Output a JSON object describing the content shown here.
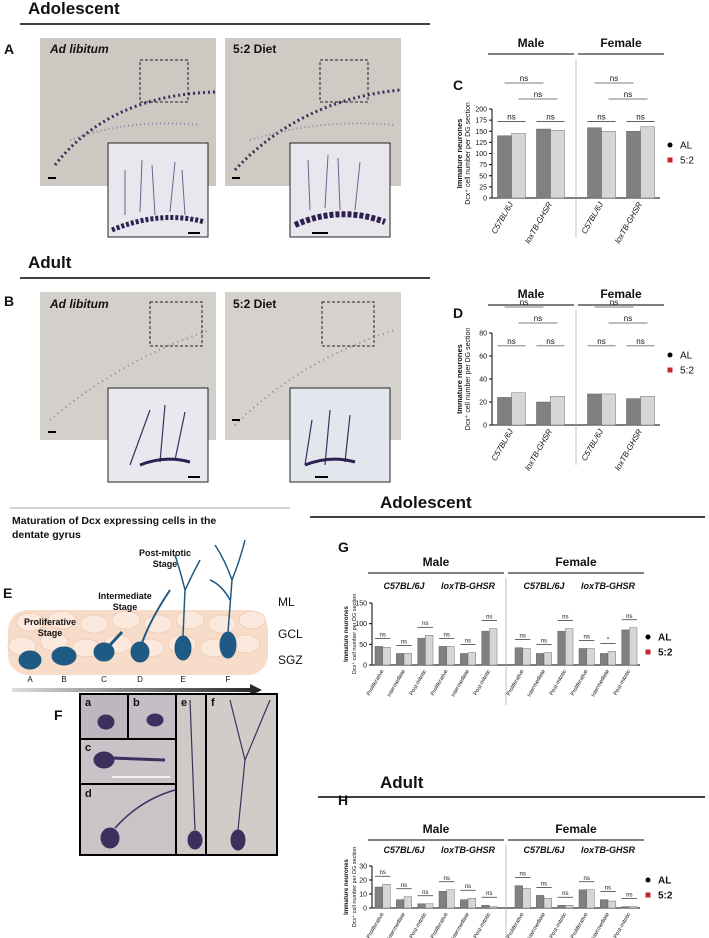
{
  "figure": {
    "heading_top": "Adolescent",
    "heading_adult": "Adult",
    "A": {
      "letter": "A",
      "left": "Ad libitum",
      "right": "5:2 Diet"
    },
    "B": {
      "letter": "B",
      "left": "Ad libitum",
      "right": "5:2 Diet"
    },
    "E": {
      "letter": "E",
      "title": [
        "Maturation of Dcx expressing cells in the",
        "dentate gyrus"
      ],
      "stages": [
        [
          "Post-mitotic",
          "Stage"
        ],
        [
          "Intermediate",
          "Stage"
        ],
        [
          "Proliferative",
          "Stage"
        ]
      ],
      "layers": [
        "ML",
        "GCL",
        "SGZ"
      ],
      "cells": [
        "A",
        "B",
        "C",
        "D",
        "E",
        "F"
      ]
    },
    "F": {
      "letter": "F",
      "cells": [
        "a",
        "b",
        "c",
        "d",
        "e",
        "f"
      ]
    }
  },
  "chart_data": [
    {
      "type": "bar",
      "letter": "C",
      "groups": [
        "Male",
        "Female"
      ],
      "categories": [
        "C57BL/6J",
        "loxTB-GHSR",
        "C57BL/6J",
        "loxTB-GHSR"
      ],
      "series": [
        {
          "name": "AL",
          "color": "#808080",
          "marker_color": "#000000",
          "values": [
            140,
            155,
            158,
            150
          ]
        },
        {
          "name": "5:2",
          "color": "#d6d6d6",
          "marker_color": "#c0282d",
          "values": [
            145,
            152,
            150,
            160
          ]
        }
      ],
      "ylabel": [
        "Immature neurones",
        "Dcx⁺ cell number per DG section"
      ],
      "ylim": [
        0,
        200
      ],
      "yticks": [
        0,
        25,
        50,
        75,
        100,
        125,
        150,
        175,
        200
      ],
      "annotations": [
        "ns",
        "ns",
        "ns",
        "ns",
        "ns",
        "ns",
        "ns",
        "ns"
      ]
    },
    {
      "type": "bar",
      "letter": "D",
      "groups": [
        "Male",
        "Female"
      ],
      "categories": [
        "C57BL/6J",
        "loxTB-GHSR",
        "C57BL/6J",
        "loxTB-GHSR"
      ],
      "series": [
        {
          "name": "AL",
          "color": "#808080",
          "marker_color": "#000000",
          "values": [
            24,
            20,
            27,
            23
          ]
        },
        {
          "name": "5:2",
          "color": "#d6d6d6",
          "marker_color": "#c0282d",
          "values": [
            28,
            25,
            27,
            25
          ]
        }
      ],
      "ylabel": [
        "Immature neurones",
        "Dcx⁺ cell number per DG section"
      ],
      "ylim": [
        0,
        80
      ],
      "yticks": [
        0,
        20,
        40,
        60,
        80
      ],
      "annotations": [
        "ns",
        "ns",
        "ns",
        "ns",
        "ns",
        "ns",
        "ns",
        "ns"
      ]
    },
    {
      "type": "bar",
      "letter": "G",
      "heading": "Adolescent",
      "groups": [
        "Male",
        "Female"
      ],
      "subgroups": [
        "C57BL/6J",
        "loxTB-GHSR",
        "C57BL/6J",
        "loxTB-GHSR"
      ],
      "categories": [
        "Proliferative",
        "Intermediate",
        "Post-mitotic",
        "Proliferative",
        "Intermediate",
        "Post-mitotic",
        "Proliferative",
        "Intermediate",
        "Post-mitotic",
        "Proliferative",
        "Intermediate",
        "Post-mitotic"
      ],
      "series": [
        {
          "name": "AL",
          "color": "#808080",
          "marker_color": "#000000",
          "values": [
            45,
            28,
            65,
            45,
            28,
            82,
            42,
            28,
            82,
            40,
            28,
            85
          ]
        },
        {
          "name": "5:2",
          "color": "#d6d6d6",
          "marker_color": "#c0282d",
          "values": [
            43,
            28,
            72,
            45,
            30,
            88,
            40,
            30,
            88,
            40,
            33,
            90
          ]
        }
      ],
      "ylabel": [
        "Immature neurones",
        "Dcx⁺ cell number per DG section"
      ],
      "ylim": [
        0,
        150
      ],
      "yticks": [
        0,
        50,
        100,
        150
      ],
      "annotations": [
        "ns",
        "ns",
        "ns",
        "ns",
        "ns",
        "ns",
        "ns",
        "ns",
        "ns",
        "ns",
        "*",
        "ns"
      ]
    },
    {
      "type": "bar",
      "letter": "H",
      "heading": "Adult",
      "groups": [
        "Male",
        "Female"
      ],
      "subgroups": [
        "C57BL/6J",
        "loxTB-GHSR",
        "C57BL/6J",
        "loxTB-GHSR"
      ],
      "categories": [
        "Proliferative",
        "Intermediate",
        "Post-mitotic",
        "Proliferative",
        "Intermediate",
        "Post-mitotic",
        "Proliferative",
        "Intermediate",
        "Post-mitotic",
        "Proliferative",
        "Intermediate",
        "Post-mitotic"
      ],
      "series": [
        {
          "name": "AL",
          "color": "#808080",
          "marker_color": "#000000",
          "values": [
            15,
            6,
            3,
            12,
            6,
            2,
            16,
            9,
            2,
            13,
            6,
            1
          ]
        },
        {
          "name": "5:2",
          "color": "#d6d6d6",
          "marker_color": "#c0282d",
          "values": [
            17,
            8,
            3,
            13,
            7,
            1,
            14,
            7,
            2,
            13,
            5,
            1
          ]
        }
      ],
      "ylabel": [
        "Immature neurones",
        "Dcx⁺ cell number per DG section"
      ],
      "ylim": [
        0,
        30
      ],
      "yticks": [
        0,
        10,
        20,
        30
      ],
      "annotations": [
        "ns",
        "ns",
        "ns",
        "ns",
        "ns",
        "ns",
        "ns",
        "ns",
        "ns",
        "ns",
        "ns",
        "ns"
      ]
    }
  ]
}
